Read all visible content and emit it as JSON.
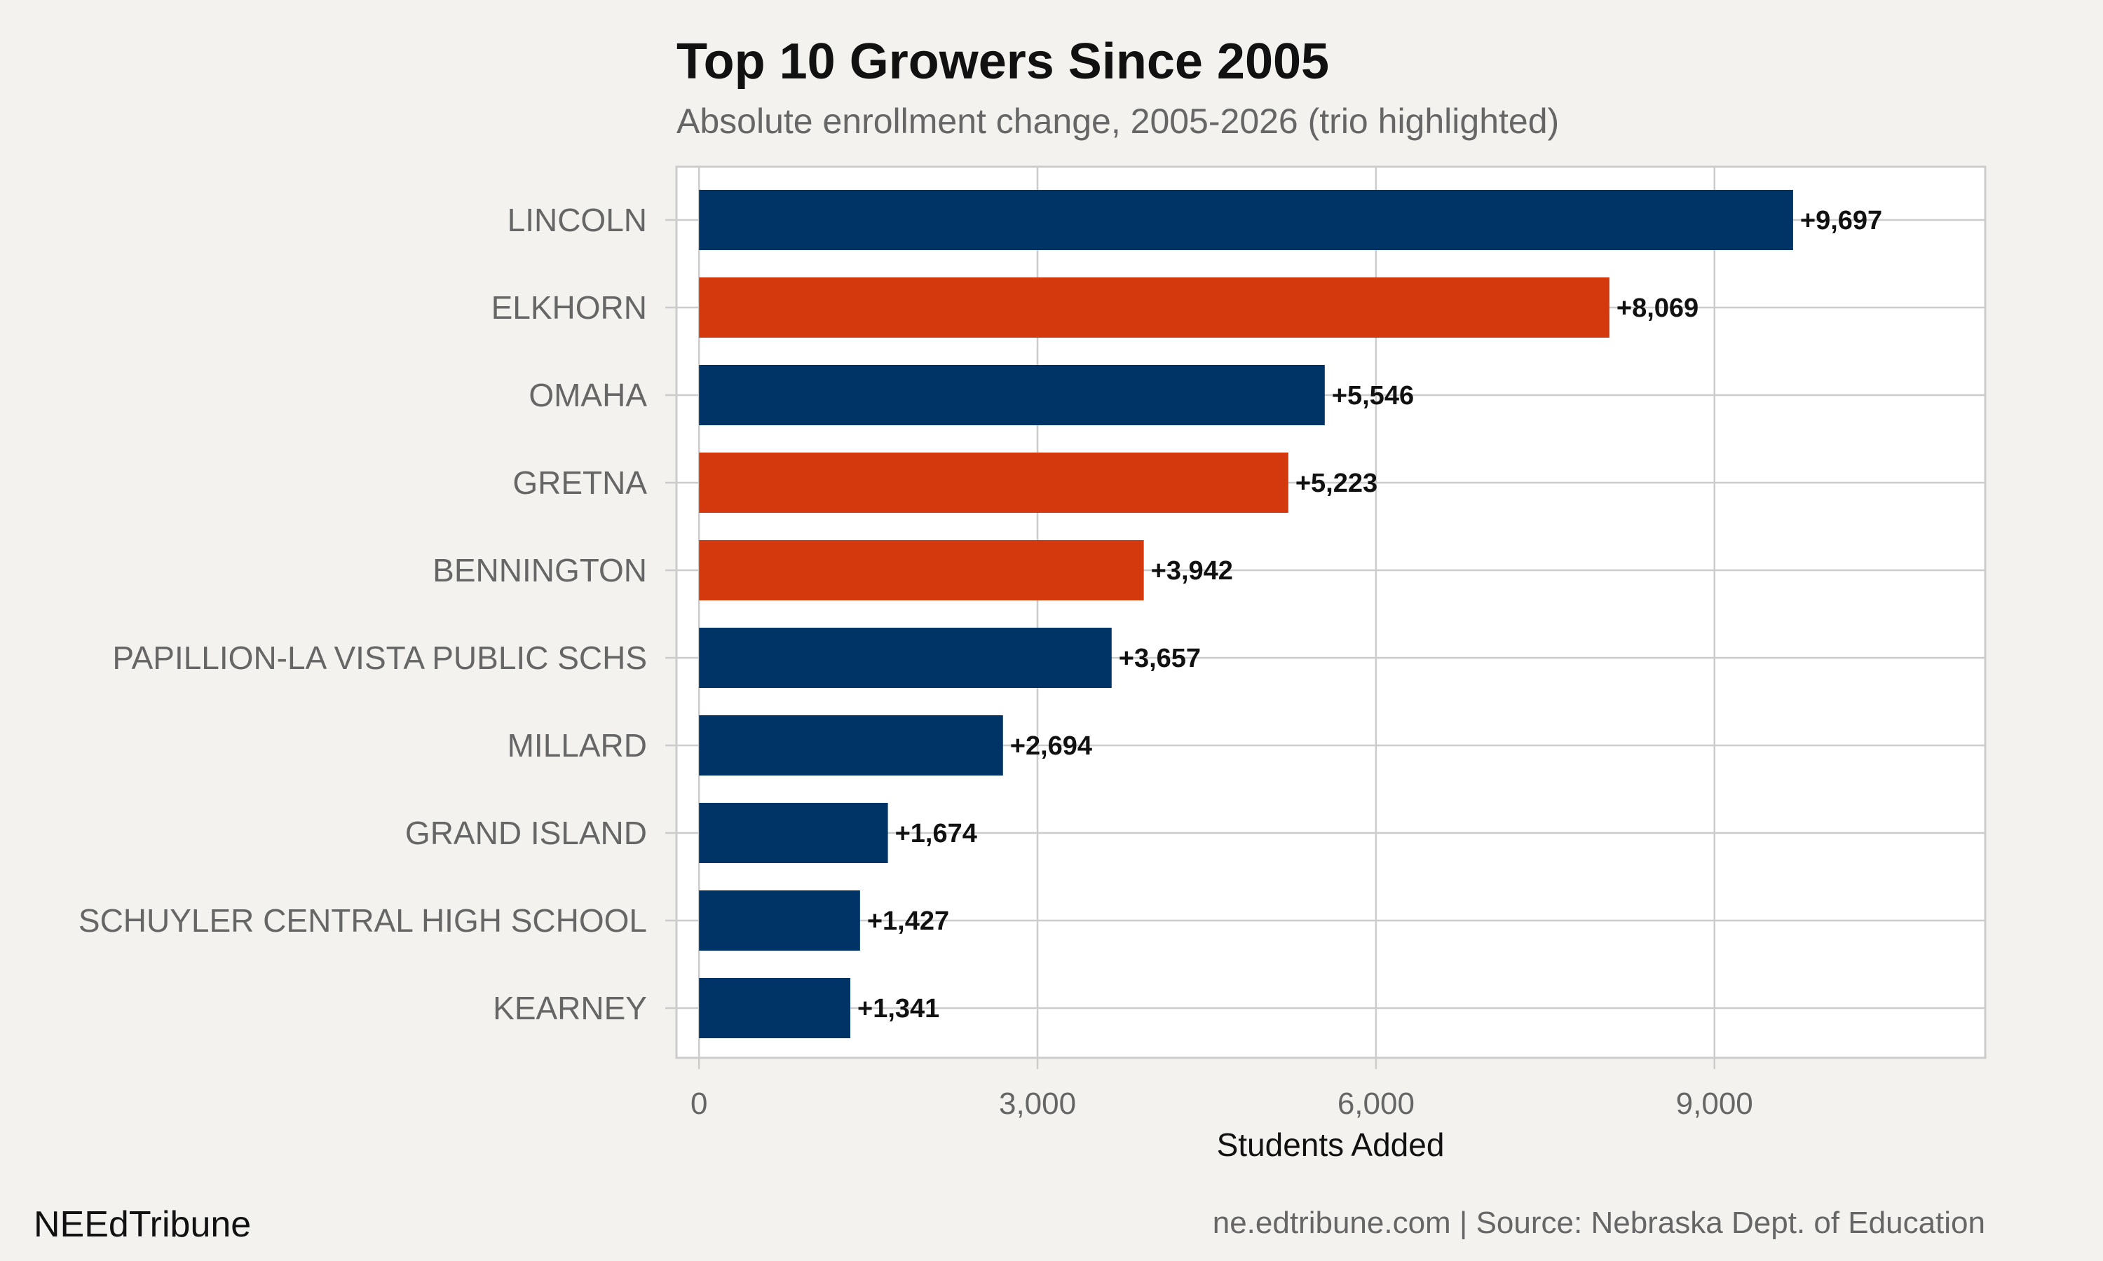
{
  "chart_data": {
    "type": "bar",
    "orientation": "horizontal",
    "title": "Top 10 Growers Since 2005",
    "subtitle": "Absolute enrollment change, 2005-2026 (trio highlighted)",
    "xlabel": "Students Added",
    "ylabel": "",
    "categories": [
      "LINCOLN",
      "ELKHORN",
      "OMAHA",
      "GRETNA",
      "BENNINGTON",
      "PAPILLION-LA VISTA PUBLIC SCHS",
      "MILLARD",
      "GRAND ISLAND",
      "SCHUYLER CENTRAL HIGH SCHOOL",
      "KEARNEY"
    ],
    "values": [
      9697,
      8069,
      5546,
      5223,
      3942,
      3657,
      2694,
      1674,
      1427,
      1341
    ],
    "value_labels": [
      "+9,697",
      "+8,069",
      "+5,546",
      "+5,223",
      "+3,942",
      "+3,657",
      "+2,694",
      "+1,674",
      "+1,427",
      "+1,341"
    ],
    "highlighted": [
      false,
      true,
      false,
      true,
      true,
      false,
      false,
      false,
      false,
      false
    ],
    "xlim": [
      -200,
      11400
    ],
    "xticks": [
      0,
      3000,
      6000,
      9000
    ],
    "xtick_labels": [
      "0",
      "3,000",
      "6,000",
      "9,000"
    ],
    "grid": true,
    "colors": {
      "default_bar": "#003366",
      "highlight_bar": "#d4380d",
      "panel": "#ffffff",
      "background": "#f4f2ee",
      "grid": "#cccccc"
    }
  },
  "footer": {
    "brand": "NEEdTribune",
    "caption": "ne.edtribune.com | Source: Nebraska Dept. of Education"
  }
}
